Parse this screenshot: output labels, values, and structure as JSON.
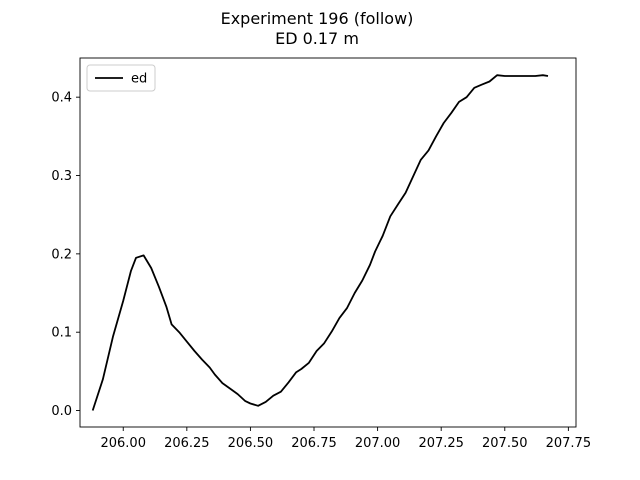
{
  "chart_data": {
    "type": "line",
    "title": "Experiment 196 (follow)",
    "subtitle": "ED 0.17 m",
    "xlabel": "",
    "ylabel": "",
    "xlim": [
      205.83,
      207.78
    ],
    "ylim": [
      -0.021,
      0.45
    ],
    "xticks": [
      206.0,
      206.25,
      206.5,
      206.75,
      207.0,
      207.25,
      207.5,
      207.75
    ],
    "xtick_labels": [
      "206.00",
      "206.25",
      "206.50",
      "206.75",
      "207.00",
      "207.25",
      "207.50",
      "207.75"
    ],
    "yticks": [
      0.0,
      0.1,
      0.2,
      0.3,
      0.4
    ],
    "ytick_labels": [
      "0.0",
      "0.1",
      "0.2",
      "0.3",
      "0.4"
    ],
    "grid": false,
    "legend": {
      "position": "top-left",
      "entries": [
        "ed"
      ]
    },
    "series": [
      {
        "name": "ed",
        "color": "#000000",
        "x": [
          205.88,
          205.92,
          205.96,
          206.0,
          206.03,
          206.05,
          206.08,
          206.11,
          206.14,
          206.17,
          206.19,
          206.22,
          206.25,
          206.28,
          206.31,
          206.34,
          206.36,
          206.39,
          206.42,
          206.45,
          206.48,
          206.5,
          206.53,
          206.56,
          206.59,
          206.62,
          206.65,
          206.68,
          206.7,
          206.73,
          206.76,
          206.79,
          206.82,
          206.85,
          206.88,
          206.91,
          206.94,
          206.97,
          206.99,
          207.02,
          207.05,
          207.08,
          207.11,
          207.14,
          207.17,
          207.2,
          207.23,
          207.26,
          207.29,
          207.32,
          207.35,
          207.38,
          207.41,
          207.44,
          207.47,
          207.5,
          207.53,
          207.56,
          207.59,
          207.62,
          207.65,
          207.67
        ],
        "y": [
          0.0,
          0.04,
          0.095,
          0.14,
          0.178,
          0.195,
          0.198,
          0.182,
          0.158,
          0.132,
          0.11,
          0.1,
          0.088,
          0.076,
          0.065,
          0.055,
          0.046,
          0.035,
          0.028,
          0.021,
          0.012,
          0.009,
          0.006,
          0.011,
          0.019,
          0.024,
          0.036,
          0.049,
          0.053,
          0.061,
          0.076,
          0.086,
          0.101,
          0.118,
          0.131,
          0.15,
          0.166,
          0.186,
          0.203,
          0.223,
          0.248,
          0.263,
          0.278,
          0.299,
          0.32,
          0.332,
          0.35,
          0.367,
          0.38,
          0.394,
          0.4,
          0.412,
          0.416,
          0.42,
          0.428,
          0.427,
          0.427,
          0.427,
          0.427,
          0.427,
          0.428,
          0.427
        ]
      }
    ]
  }
}
